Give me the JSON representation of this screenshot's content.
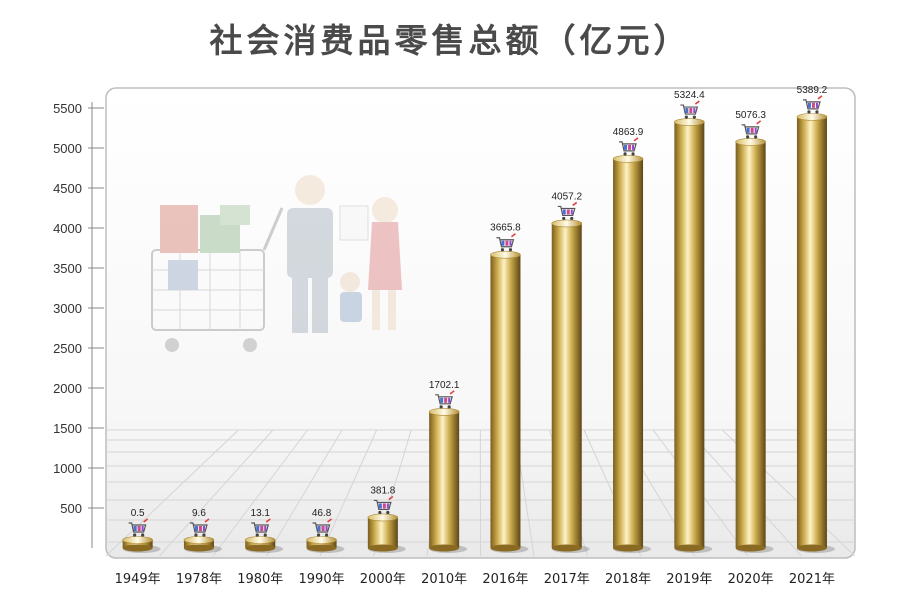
{
  "chart_data": {
    "type": "bar",
    "title": "社会消费品零售总额（亿元）",
    "categories": [
      "1949年",
      "1978年",
      "1980年",
      "1990年",
      "2000年",
      "2010年",
      "2016年",
      "2017年",
      "2018年",
      "2019年",
      "2020年",
      "2021年"
    ],
    "values": [
      0.5,
      9.6,
      13.1,
      46.8,
      381.8,
      1702.1,
      3665.8,
      4057.2,
      4863.9,
      5324.4,
      5076.3,
      5389.2
    ],
    "value_labels": [
      "0.5",
      "9.6",
      "13.1",
      "46.8",
      "381.8",
      "1702.1",
      "3665.8",
      "4057.2",
      "4863.9",
      "5324.4",
      "5076.3",
      "5389.2"
    ],
    "y_ticks": [
      "500",
      "1000",
      "1500",
      "2000",
      "2500",
      "3000",
      "3500",
      "4000",
      "4500",
      "5000",
      "5500"
    ],
    "ylim": [
      0,
      5500
    ],
    "grid": false,
    "bar_color": "#c9a94a",
    "marker_icon": "shopping-cart-icon"
  }
}
